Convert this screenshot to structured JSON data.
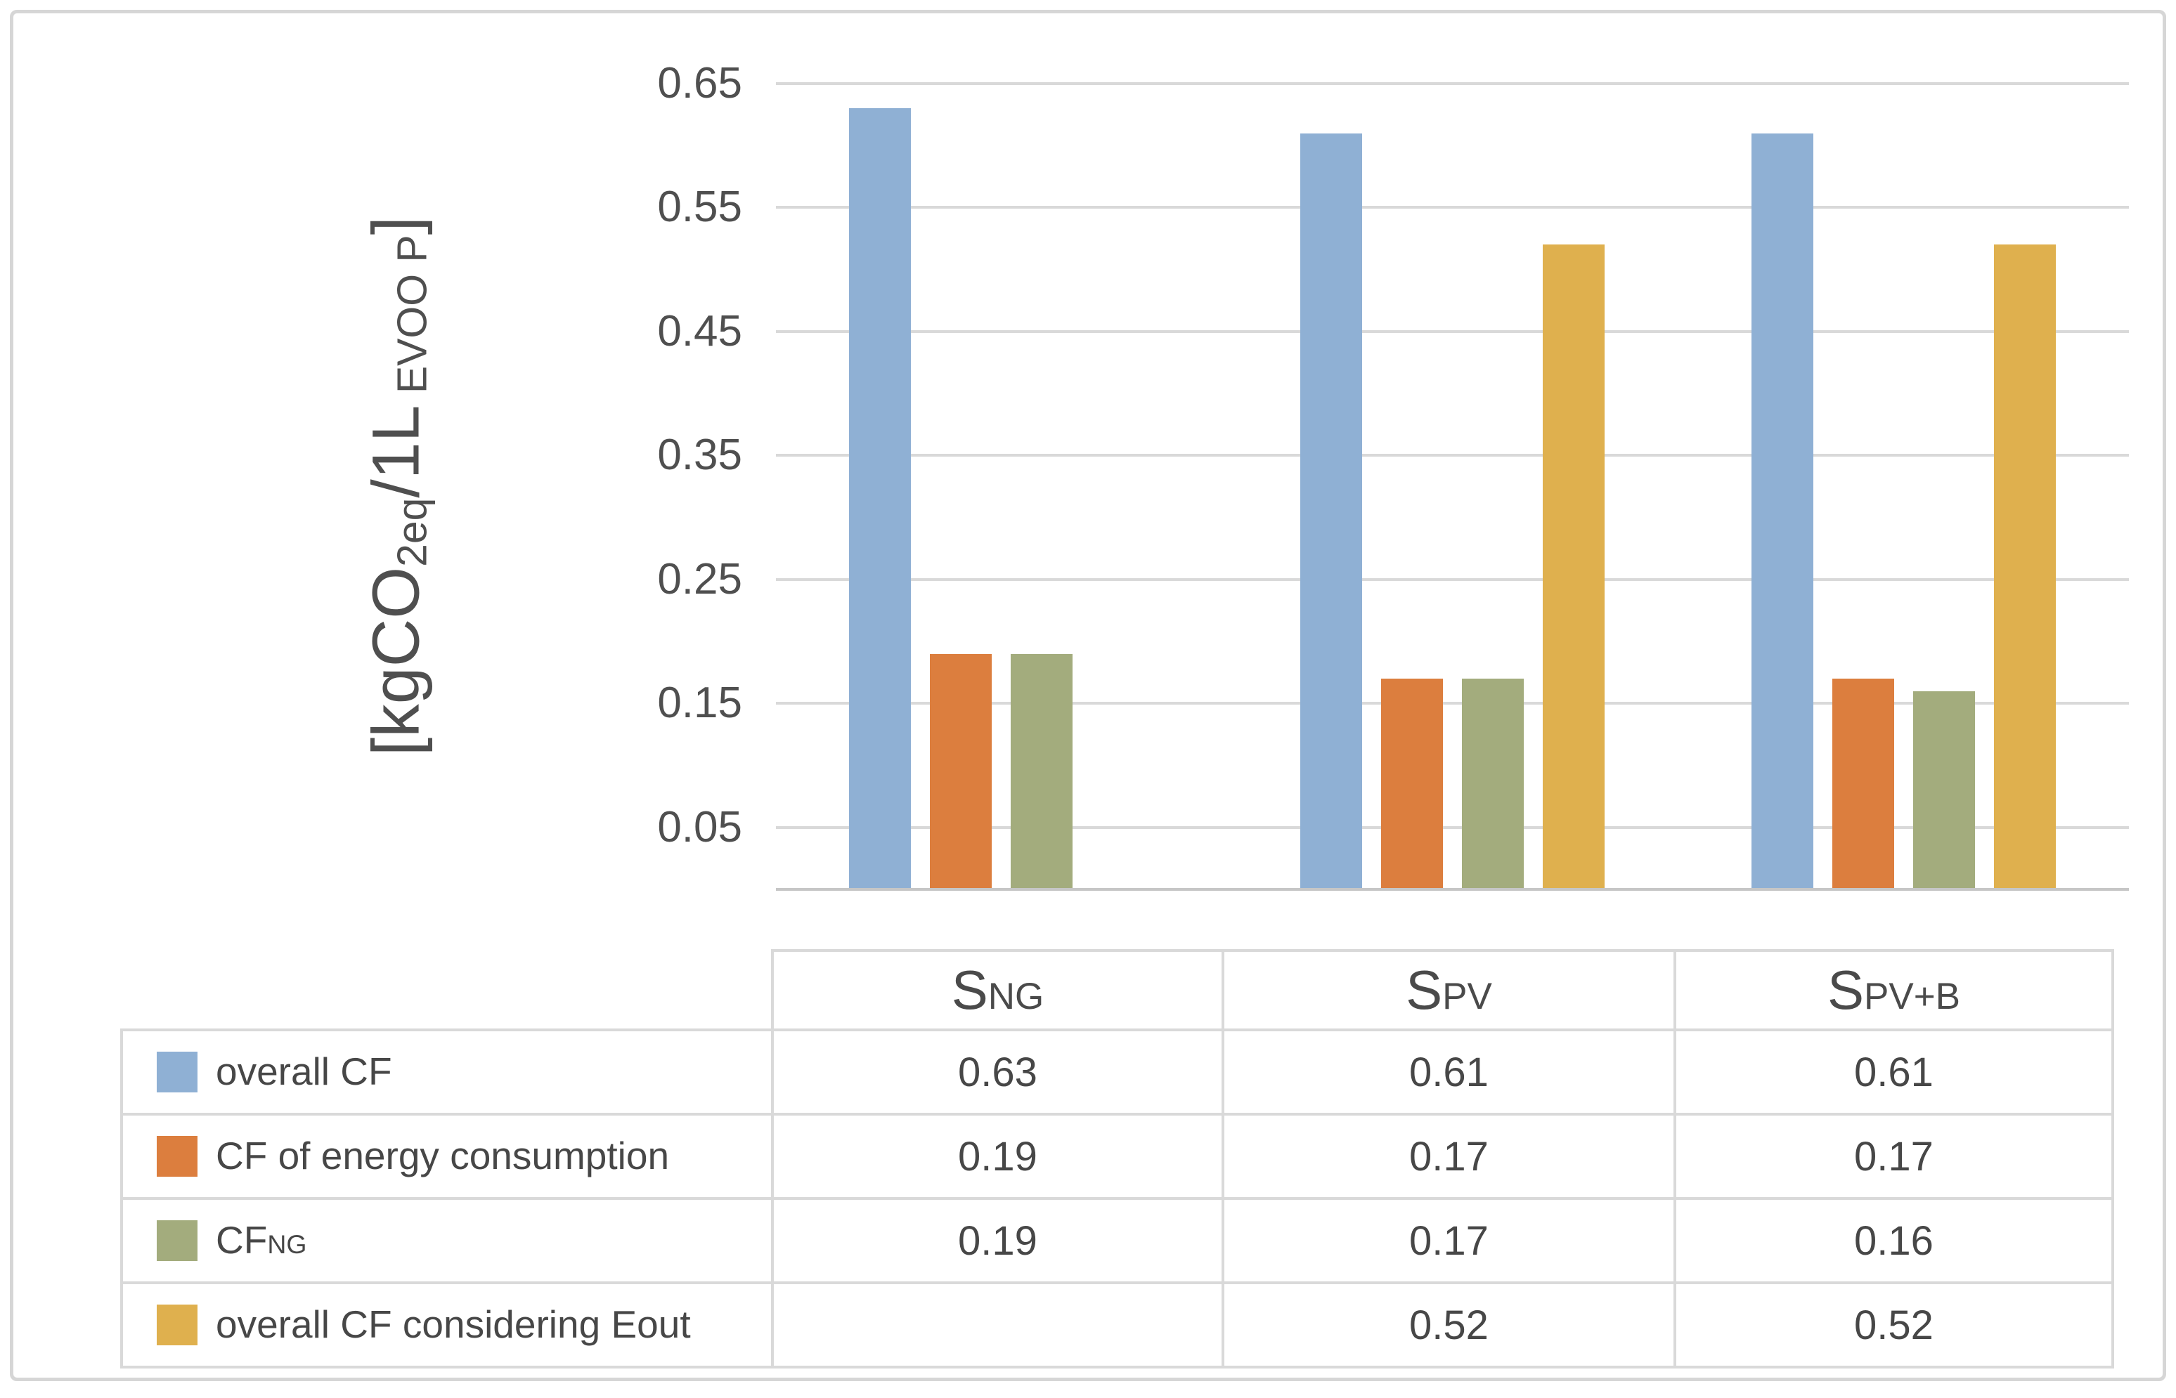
{
  "figure": {
    "background": "#ffffff",
    "frame_border_color": "#d6d6d6"
  },
  "chart_data": {
    "type": "bar",
    "title": "",
    "categories": [
      "SNG",
      "SPV",
      "SPV+B"
    ],
    "category_slugs": [
      "sng",
      "spv",
      "spv-b"
    ],
    "category_parts": [
      [
        {
          "text": "S"
        },
        {
          "text": "NG",
          "small": true
        }
      ],
      [
        {
          "text": "S"
        },
        {
          "text": "PV",
          "small": true
        }
      ],
      [
        {
          "text": "S"
        },
        {
          "text": "PV+B",
          "small": true
        }
      ]
    ],
    "series": [
      {
        "name": "overall CF",
        "slug": "overall-cf",
        "color": "#8fb0d4",
        "name_parts": [
          {
            "text": "overall CF"
          }
        ],
        "values": [
          0.63,
          0.61,
          0.61
        ]
      },
      {
        "name": "CF of energy consumption",
        "slug": "cf-of-energy-consumption",
        "color": "#dc7e3e",
        "name_parts": [
          {
            "text": "CF of energy consumption"
          }
        ],
        "values": [
          0.19,
          0.17,
          0.17
        ]
      },
      {
        "name": "CFNG",
        "slug": "cf-ng",
        "color": "#a3ac7d",
        "name_parts": [
          {
            "text": "CF"
          },
          {
            "text": "NG",
            "small": true
          }
        ],
        "values": [
          0.19,
          0.17,
          0.16
        ]
      },
      {
        "name": "overall CF considering Eout",
        "slug": "overall-cf-considering-eout",
        "color": "#dfb04e",
        "name_parts": [
          {
            "text": "overall CF considering Eout"
          }
        ],
        "values": [
          null,
          0.52,
          0.52
        ]
      }
    ],
    "ylabel": "[kgCO2eq/1L EVOO P]",
    "ylabel_parts": [
      {
        "text": "[kgCO"
      },
      {
        "text": "2eq",
        "sub": true
      },
      {
        "text": "/1L"
      },
      {
        "text": " EVOO P",
        "sub": true
      },
      {
        "text": "]"
      }
    ],
    "ylim": [
      0,
      0.65
    ],
    "yticks": [
      "0.65",
      "0.55",
      "0.45",
      "0.35",
      "0.25",
      "0.15",
      "0.05"
    ],
    "grid": true,
    "gridline_color": "#d9d9d9",
    "axis_line_color": "#c6c6c6",
    "text_color": "#4f4f4f",
    "legend_position": "table-below"
  },
  "table": {
    "header_row": [
      "",
      "SNG",
      "SPV",
      "SPV+B"
    ],
    "rows": [
      {
        "label": "overall CF",
        "values": [
          "0.63",
          "0.61",
          "0.61"
        ]
      },
      {
        "label": "CF of energy consumption",
        "values": [
          "0.19",
          "0.17",
          "0.17"
        ]
      },
      {
        "label": "CFNG",
        "values": [
          "0.19",
          "0.17",
          "0.16"
        ]
      },
      {
        "label": "overall CF considering Eout",
        "values": [
          "",
          "0.52",
          "0.52"
        ]
      }
    ],
    "border_color": "#d9d9d9"
  }
}
